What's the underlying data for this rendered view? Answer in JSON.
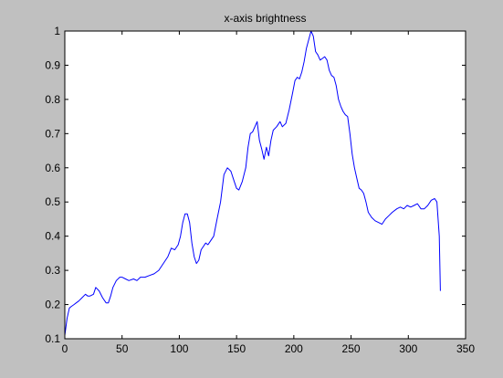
{
  "chart_data": {
    "type": "line",
    "title": "x-axis brightness",
    "xlabel": "",
    "ylabel": "",
    "xlim": [
      0,
      350
    ],
    "ylim": [
      0.1,
      1
    ],
    "xticks": [
      0,
      50,
      100,
      150,
      200,
      250,
      300,
      350
    ],
    "yticks": [
      0.1,
      0.2,
      0.3,
      0.4,
      0.5,
      0.6,
      0.7,
      0.8,
      0.9,
      1
    ],
    "ytick_labels": [
      "0.1",
      "0.2",
      "0.3",
      "0.4",
      "0.5",
      "0.6",
      "0.7",
      "0.8",
      "0.9",
      "1"
    ],
    "grid": false,
    "series": [
      {
        "color": "#0000ff",
        "x": [
          0,
          2,
          4,
          6,
          8,
          10,
          12,
          15,
          18,
          20,
          22,
          25,
          27,
          30,
          33,
          36,
          38,
          40,
          42,
          45,
          48,
          50,
          53,
          56,
          60,
          63,
          66,
          70,
          74,
          78,
          82,
          86,
          90,
          93,
          96,
          99,
          101,
          103,
          105,
          107,
          109,
          111,
          113,
          115,
          117,
          119,
          121,
          123,
          125,
          127,
          130,
          133,
          136,
          139,
          142,
          145,
          148,
          150,
          152,
          155,
          158,
          160,
          162,
          164,
          166,
          168,
          170,
          172,
          174,
          176,
          178,
          180,
          182,
          185,
          188,
          190,
          193,
          196,
          199,
          201,
          203,
          205,
          207,
          209,
          211,
          213,
          215,
          217,
          219,
          221,
          223,
          225,
          227,
          229,
          231,
          233,
          235,
          237,
          239,
          241,
          243,
          245,
          247,
          249,
          251,
          253,
          255,
          257,
          259,
          261,
          263,
          265,
          268,
          271,
          274,
          277,
          280,
          283,
          286,
          290,
          293,
          296,
          299,
          302,
          305,
          308,
          311,
          314,
          317,
          320,
          323,
          325,
          327,
          328
        ],
        "y": [
          0.11,
          0.16,
          0.19,
          0.195,
          0.2,
          0.205,
          0.21,
          0.22,
          0.23,
          0.225,
          0.225,
          0.23,
          0.25,
          0.24,
          0.22,
          0.205,
          0.205,
          0.225,
          0.25,
          0.27,
          0.28,
          0.28,
          0.275,
          0.27,
          0.275,
          0.27,
          0.28,
          0.28,
          0.285,
          0.29,
          0.3,
          0.32,
          0.34,
          0.365,
          0.36,
          0.375,
          0.4,
          0.44,
          0.465,
          0.465,
          0.44,
          0.38,
          0.34,
          0.32,
          0.33,
          0.36,
          0.37,
          0.38,
          0.375,
          0.385,
          0.4,
          0.45,
          0.5,
          0.58,
          0.6,
          0.59,
          0.56,
          0.54,
          0.535,
          0.56,
          0.6,
          0.66,
          0.7,
          0.705,
          0.72,
          0.735,
          0.68,
          0.655,
          0.625,
          0.66,
          0.635,
          0.68,
          0.71,
          0.72,
          0.735,
          0.72,
          0.73,
          0.77,
          0.82,
          0.855,
          0.865,
          0.86,
          0.88,
          0.91,
          0.95,
          0.975,
          1.0,
          0.985,
          0.94,
          0.93,
          0.915,
          0.92,
          0.925,
          0.915,
          0.885,
          0.87,
          0.865,
          0.84,
          0.8,
          0.78,
          0.765,
          0.755,
          0.75,
          0.7,
          0.64,
          0.6,
          0.57,
          0.54,
          0.535,
          0.525,
          0.5,
          0.47,
          0.455,
          0.445,
          0.44,
          0.435,
          0.45,
          0.46,
          0.47,
          0.48,
          0.485,
          0.48,
          0.49,
          0.485,
          0.49,
          0.495,
          0.48,
          0.48,
          0.49,
          0.505,
          0.51,
          0.5,
          0.4,
          0.24
        ]
      }
    ]
  }
}
